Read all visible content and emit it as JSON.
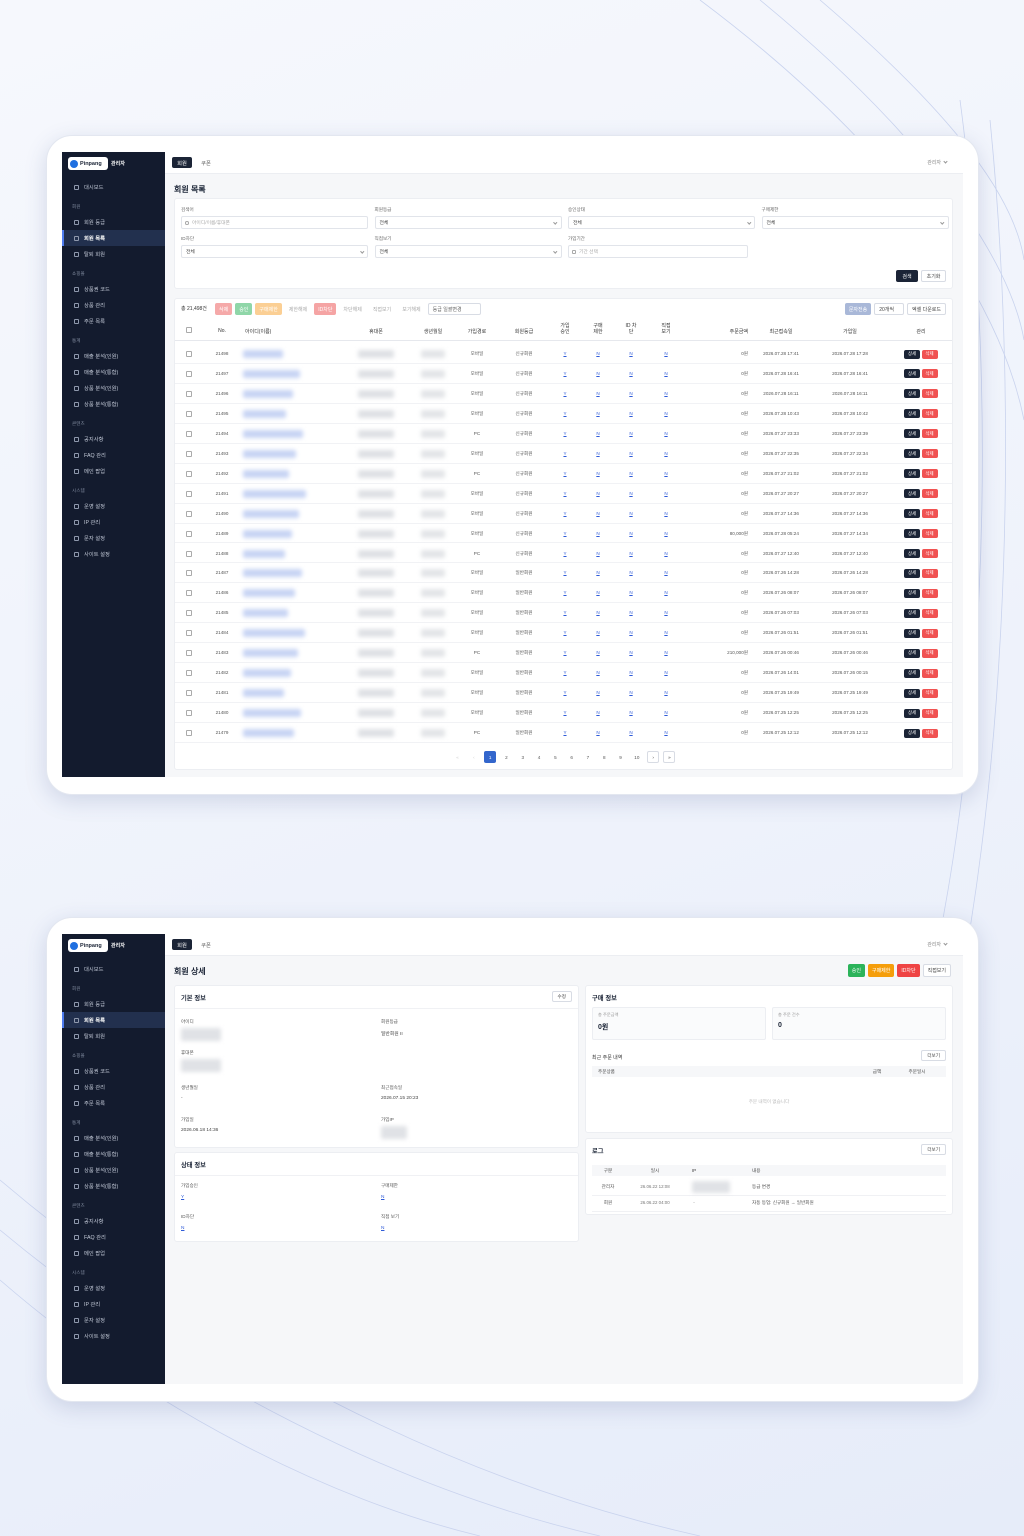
{
  "sidebar": {
    "brand": "Pinpang",
    "badge": "관리자",
    "dashboard": "대시보드",
    "sections": [
      {
        "name": "회원",
        "items": [
          "회원 등급",
          "회원 목록",
          "탈퇴 회원"
        ]
      },
      {
        "name": "쇼핑몰",
        "items": [
          "상품권 코드",
          "상품 관리",
          "주문 목록"
        ]
      },
      {
        "name": "통계",
        "items": [
          "매출 분석(인원)",
          "매출 분석(통합)",
          "상품 분석(인원)",
          "상품 분석(통합)"
        ]
      },
      {
        "name": "콘텐츠",
        "items": [
          "공지사항",
          "FAQ 관리",
          "메인 팝업"
        ]
      },
      {
        "name": "시스템",
        "items": [
          "운영 설정",
          "IP 관리",
          "문자 설정",
          "사이트 설정"
        ]
      }
    ]
  },
  "topbar": {
    "tabs": [
      "회원",
      "쿠폰"
    ],
    "user": "관리자"
  },
  "member_list": {
    "title": "회원 목록",
    "filters": [
      {
        "label": "검색어",
        "value": "아이디/이름/휴대폰"
      },
      {
        "label": "회원등급",
        "value": "전체"
      },
      {
        "label": "승인상태",
        "value": "전체"
      },
      {
        "label": "구매제한",
        "value": "전체"
      },
      {
        "label": "ID차단",
        "value": "전체"
      },
      {
        "label": "직접보기",
        "value": "전체"
      },
      {
        "label": "가입기간",
        "value": "기간 선택"
      }
    ],
    "search_buttons": [
      "검색",
      "초기화"
    ],
    "total": "총 21,498건",
    "bulk_actions": [
      "삭제",
      "승인",
      "구매제한",
      "제한해제",
      "ID차단",
      "차단해제",
      "직접보기",
      "보기해제"
    ],
    "grade_select": "등급 일괄변경",
    "right_actions": [
      "문자전송",
      "20개씩",
      "엑셀 다운로드"
    ],
    "columns": [
      "No.",
      "아이디(이름)",
      "휴대폰",
      "생년월일",
      "가입경로",
      "회원등급",
      "가입 승인",
      "구매 제한",
      "ID 차단",
      "직접 보기",
      "주문금액",
      "최근접속일",
      "가입일",
      "관리"
    ],
    "rows": [
      [
        "21498",
        "모바일",
        "신규회원",
        "Y",
        "N",
        "N",
        "N",
        "0원",
        "2026.07.28 17:41",
        "2026.07.28 17:28"
      ],
      [
        "21497",
        "모바일",
        "신규회원",
        "Y",
        "N",
        "N",
        "N",
        "0원",
        "2026.07.28 16:41",
        "2026.07.28 16:41"
      ],
      [
        "21496",
        "모바일",
        "신규회원",
        "Y",
        "N",
        "N",
        "N",
        "0원",
        "2026.07.28 16:11",
        "2026.07.28 16:11"
      ],
      [
        "21495",
        "모바일",
        "신규회원",
        "Y",
        "N",
        "N",
        "N",
        "0원",
        "2026.07.28 10:43",
        "2026.07.28 10:42"
      ],
      [
        "21494",
        "PC",
        "신규회원",
        "Y",
        "N",
        "N",
        "N",
        "0원",
        "2026.07.27 23:33",
        "2026.07.27 23:39"
      ],
      [
        "21493",
        "모바일",
        "신규회원",
        "Y",
        "N",
        "N",
        "N",
        "0원",
        "2026.07.27 22:35",
        "2026.07.27 22:34"
      ],
      [
        "21492",
        "PC",
        "신규회원",
        "Y",
        "N",
        "N",
        "N",
        "0원",
        "2026.07.27 21:02",
        "2026.07.27 21:02"
      ],
      [
        "21491",
        "모바일",
        "신규회원",
        "Y",
        "N",
        "N",
        "N",
        "0원",
        "2026.07.27 20:27",
        "2026.07.27 20:27"
      ],
      [
        "21490",
        "모바일",
        "신규회원",
        "Y",
        "N",
        "N",
        "N",
        "0원",
        "2026.07.27 14:36",
        "2026.07.27 14:36"
      ],
      [
        "21489",
        "모바일",
        "신규회원",
        "Y",
        "N",
        "N",
        "N",
        "80,000원",
        "2026.07.28 05:24",
        "2026.07.27 14:34"
      ],
      [
        "21488",
        "PC",
        "신규회원",
        "Y",
        "N",
        "N",
        "N",
        "0원",
        "2026.07.27 12:40",
        "2026.07.27 12:40"
      ],
      [
        "21487",
        "모바일",
        "일반회원",
        "Y",
        "N",
        "N",
        "N",
        "0원",
        "2026.07.26 14:28",
        "2026.07.26 14:28"
      ],
      [
        "21486",
        "모바일",
        "일반회원",
        "Y",
        "N",
        "N",
        "N",
        "0원",
        "2026.07.26 08:07",
        "2026.07.26 08:07"
      ],
      [
        "21485",
        "모바일",
        "일반회원",
        "Y",
        "N",
        "N",
        "N",
        "0원",
        "2026.07.26 07:03",
        "2026.07.26 07:03"
      ],
      [
        "21484",
        "모바일",
        "일반회원",
        "Y",
        "N",
        "N",
        "N",
        "0원",
        "2026.07.26 01:51",
        "2026.07.26 01:51"
      ],
      [
        "21483",
        "PC",
        "일반회원",
        "Y",
        "N",
        "N",
        "N",
        "210,000원",
        "2026.07.26 00:46",
        "2026.07.26 00:46"
      ],
      [
        "21482",
        "모바일",
        "일반회원",
        "Y",
        "N",
        "N",
        "N",
        "0원",
        "2026.07.26 14:01",
        "2026.07.26 00:15"
      ],
      [
        "21481",
        "모바일",
        "일반회원",
        "Y",
        "N",
        "N",
        "N",
        "0원",
        "2026.07.25 19:49",
        "2026.07.25 19:49"
      ],
      [
        "21480",
        "모바일",
        "일반회원",
        "Y",
        "N",
        "N",
        "N",
        "0원",
        "2026.07.25 12:25",
        "2026.07.25 12:25"
      ],
      [
        "21479",
        "PC",
        "일반회원",
        "Y",
        "N",
        "N",
        "N",
        "0원",
        "2026.07.25 12:12",
        "2026.07.25 12:12"
      ]
    ],
    "row_actions": [
      "상세",
      "삭제"
    ],
    "pagination": [
      "«",
      "‹",
      "1",
      "2",
      "3",
      "4",
      "5",
      "6",
      "7",
      "8",
      "9",
      "10",
      "›",
      "»"
    ]
  },
  "member_detail": {
    "title": "회원 상세",
    "actions": [
      "승인",
      "구매제한",
      "ID차단",
      "직접보기"
    ],
    "basic": {
      "title": "기본 정보",
      "edit": "수정",
      "fields": [
        {
          "label": "아이디"
        },
        {
          "label": "회원등급",
          "value": "일반회원 II"
        },
        {
          "label": "휴대폰"
        },
        {
          "label": "생년월일",
          "value": "-"
        },
        {
          "label": "최근접속일",
          "value": "2026.07.15 20:23"
        },
        {
          "label": "가입일",
          "value": "2026.06.18 14:36"
        },
        {
          "label": "가입IP"
        }
      ]
    },
    "status": {
      "title": "상태 정보",
      "fields": [
        {
          "label": "가입승인",
          "value": "Y"
        },
        {
          "label": "구매제한",
          "value": "N"
        },
        {
          "label": "ID차단",
          "value": "N"
        },
        {
          "label": "직접 보기",
          "value": "N"
        }
      ]
    },
    "purchase": {
      "title": "구매 정보",
      "stats": [
        {
          "label": "총 주문금액",
          "value": "0원"
        },
        {
          "label": "총 주문 건수",
          "value": "0"
        }
      ],
      "recent_title": "최근 주문 내역",
      "more": "더보기",
      "order_columns": [
        "주문상품",
        "금액",
        "주문일시"
      ],
      "empty": "주문 내역이 없습니다"
    },
    "log": {
      "title": "로그",
      "more": "더보기",
      "columns": [
        "구분",
        "일시",
        "IP",
        "내용"
      ],
      "rows": [
        {
          "type": "관리자",
          "time": "26.06.22 12:08",
          "content": "등급 변경"
        },
        {
          "type": "회원",
          "time": "26.06.22 04:00",
          "ip": "-",
          "content": "자동 등업: 신규회원 → 일반회원"
        }
      ]
    }
  }
}
